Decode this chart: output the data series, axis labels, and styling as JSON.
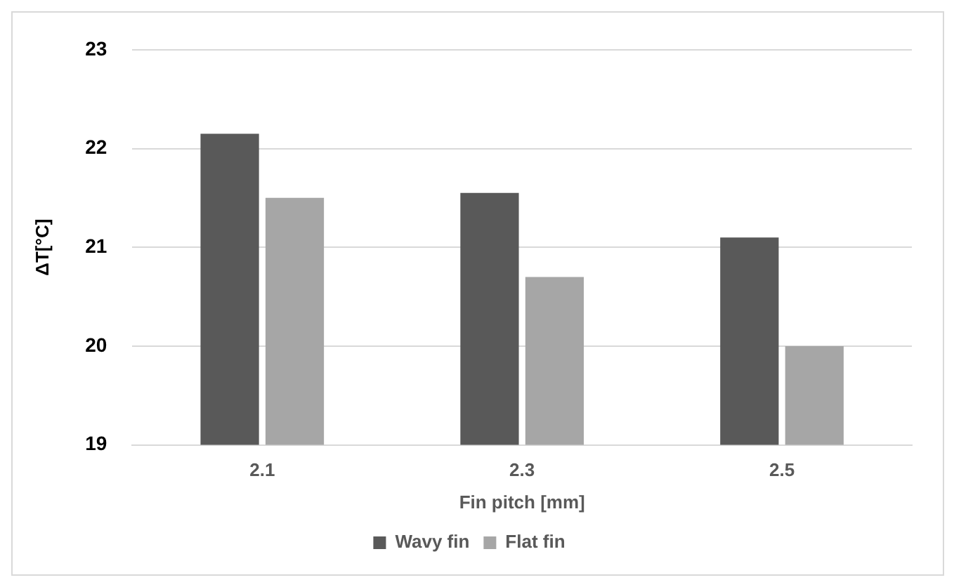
{
  "chart_data": {
    "type": "bar",
    "xlabel": "Fin pitch [mm]",
    "ylabel": "ΔT[°C]",
    "categories": [
      "2.1",
      "2.3",
      "2.5"
    ],
    "series": [
      {
        "name": "Wavy fin",
        "color": "#595959",
        "values": [
          22.15,
          21.55,
          21.1
        ]
      },
      {
        "name": "Flat fin",
        "color": "#a6a6a6",
        "values": [
          21.5,
          20.7,
          20.0
        ]
      }
    ],
    "ylim": [
      19,
      23
    ],
    "yticks": [
      19,
      20,
      21,
      22,
      23
    ],
    "grid": "y",
    "legend": "bottom"
  }
}
